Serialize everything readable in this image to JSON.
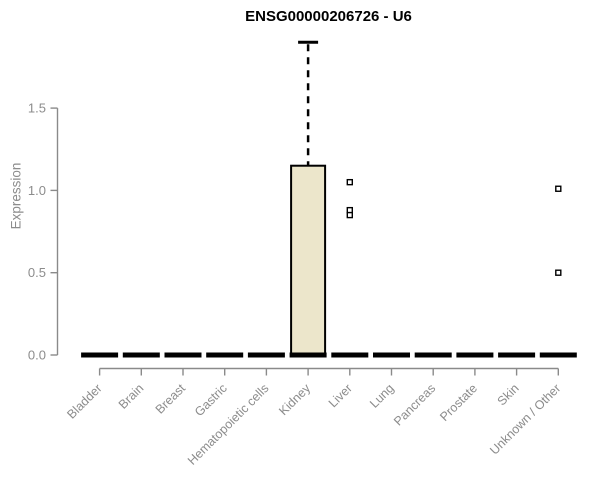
{
  "chart_data": {
    "type": "boxplot",
    "title": "ENSG00000206726 - U6",
    "xlabel": "",
    "ylabel": "Expression",
    "ylim": [
      0,
      1.95
    ],
    "yticks": [
      0,
      0.5,
      1,
      1.5
    ],
    "grid": false,
    "legend": false,
    "categories": [
      "Bladder",
      "Brain",
      "Breast",
      "Gastric",
      "Hematopoietic cells",
      "Kidney",
      "Liver",
      "Lung",
      "Pancreas",
      "Prostate",
      "Skin",
      "Unknown / Other"
    ],
    "boxes": [
      {
        "category": "Bladder",
        "low": 0,
        "q1": 0,
        "median": 0,
        "q3": 0,
        "high": 0,
        "outliers": []
      },
      {
        "category": "Brain",
        "low": 0,
        "q1": 0,
        "median": 0,
        "q3": 0,
        "high": 0,
        "outliers": []
      },
      {
        "category": "Breast",
        "low": 0,
        "q1": 0,
        "median": 0,
        "q3": 0,
        "high": 0,
        "outliers": []
      },
      {
        "category": "Gastric",
        "low": 0,
        "q1": 0,
        "median": 0,
        "q3": 0,
        "high": 0,
        "outliers": []
      },
      {
        "category": "Hematopoietic cells",
        "low": 0,
        "q1": 0,
        "median": 0,
        "q3": 0,
        "high": 0,
        "outliers": []
      },
      {
        "category": "Kidney",
        "low": 0,
        "q1": 0,
        "median": 0,
        "q3": 1.15,
        "high": 1.9,
        "outliers": []
      },
      {
        "category": "Liver",
        "low": 0,
        "q1": 0,
        "median": 0,
        "q3": 0,
        "high": 0,
        "outliers": [
          1.05,
          0.88,
          0.85
        ]
      },
      {
        "category": "Lung",
        "low": 0,
        "q1": 0,
        "median": 0,
        "q3": 0,
        "high": 0,
        "outliers": []
      },
      {
        "category": "Pancreas",
        "low": 0,
        "q1": 0,
        "median": 0,
        "q3": 0,
        "high": 0,
        "outliers": []
      },
      {
        "category": "Prostate",
        "low": 0,
        "q1": 0,
        "median": 0,
        "q3": 0,
        "high": 0,
        "outliers": []
      },
      {
        "category": "Skin",
        "low": 0,
        "q1": 0,
        "median": 0,
        "q3": 0,
        "high": 0,
        "outliers": []
      },
      {
        "category": "Unknown / Other",
        "low": 0,
        "q1": 0,
        "median": 0,
        "q3": 0,
        "high": 0,
        "outliers": [
          1.01,
          0.5
        ]
      }
    ],
    "colors": {
      "box_fill": "#ECE6CB",
      "box_stroke": "#000000",
      "median": "#000000",
      "whisker": "#000000",
      "outlier_fill": "#ffffff",
      "outlier_stroke": "#000000",
      "axis": "#8A8A8A",
      "tick_label": "#8C8C8C",
      "title": "#000000"
    }
  }
}
